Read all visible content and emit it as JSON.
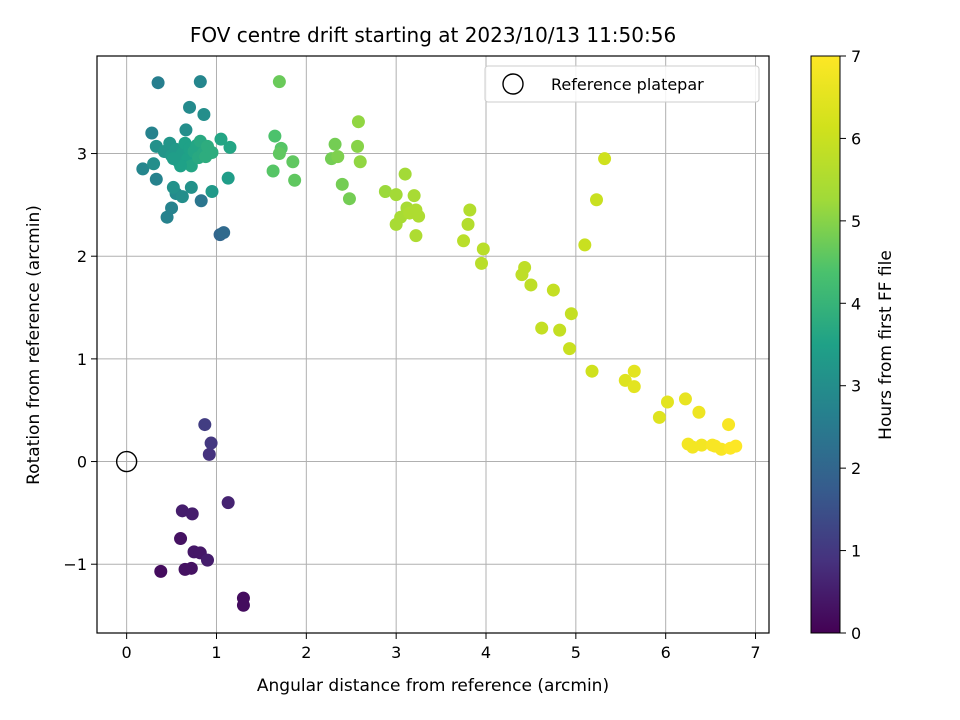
{
  "chart_data": {
    "type": "scatter",
    "title": "FOV centre drift starting at 2023/10/13 11:50:56",
    "xlabel": "Angular distance from reference (arcmin)",
    "ylabel": "Rotation from reference (arcmin)",
    "xlim": [
      -0.33,
      7.15
    ],
    "ylim": [
      -1.67,
      3.95
    ],
    "xticks": [
      0,
      1,
      2,
      3,
      4,
      5,
      6,
      7
    ],
    "yticks": [
      -1,
      0,
      1,
      2,
      3
    ],
    "grid": true,
    "legend": {
      "placement": "top-right",
      "entries": [
        "Reference platepar"
      ]
    },
    "reference_point": {
      "label": "Reference platepar",
      "x": 0,
      "y": 0
    },
    "colorbar": {
      "label": "Hours from first FF file",
      "range": [
        0,
        7
      ],
      "ticks": [
        0,
        1,
        2,
        3,
        4,
        5,
        6,
        7
      ],
      "colormap": "viridis"
    },
    "points": [
      {
        "x": 0.38,
        "y": -1.07,
        "h": 0.2
      },
      {
        "x": 0.65,
        "y": -1.05,
        "h": 0.3
      },
      {
        "x": 0.72,
        "y": -1.04,
        "h": 0.3
      },
      {
        "x": 0.75,
        "y": -0.88,
        "h": 0.4
      },
      {
        "x": 0.82,
        "y": -0.89,
        "h": 0.4
      },
      {
        "x": 0.9,
        "y": -0.96,
        "h": 0.5
      },
      {
        "x": 0.6,
        "y": -0.75,
        "h": 0.3
      },
      {
        "x": 0.62,
        "y": -0.48,
        "h": 0.5
      },
      {
        "x": 0.73,
        "y": -0.51,
        "h": 0.5
      },
      {
        "x": 1.13,
        "y": -0.4,
        "h": 0.6
      },
      {
        "x": 1.3,
        "y": -1.33,
        "h": 0.2
      },
      {
        "x": 1.3,
        "y": -1.4,
        "h": 0.2
      },
      {
        "x": 0.92,
        "y": 0.07,
        "h": 0.9
      },
      {
        "x": 0.94,
        "y": 0.18,
        "h": 1.0
      },
      {
        "x": 0.87,
        "y": 0.36,
        "h": 1.1
      },
      {
        "x": 1.04,
        "y": 2.21,
        "h": 2.0
      },
      {
        "x": 1.08,
        "y": 2.23,
        "h": 2.1
      },
      {
        "x": 0.83,
        "y": 2.54,
        "h": 2.4
      },
      {
        "x": 0.45,
        "y": 2.38,
        "h": 2.7
      },
      {
        "x": 0.5,
        "y": 2.47,
        "h": 2.7
      },
      {
        "x": 0.55,
        "y": 2.61,
        "h": 2.9
      },
      {
        "x": 0.62,
        "y": 2.58,
        "h": 3.0
      },
      {
        "x": 0.52,
        "y": 2.67,
        "h": 3.1
      },
      {
        "x": 0.72,
        "y": 2.67,
        "h": 3.1
      },
      {
        "x": 0.95,
        "y": 2.63,
        "h": 3.3
      },
      {
        "x": 1.13,
        "y": 2.76,
        "h": 3.4
      },
      {
        "x": 0.35,
        "y": 3.69,
        "h": 2.6
      },
      {
        "x": 0.82,
        "y": 3.7,
        "h": 2.8
      },
      {
        "x": 0.7,
        "y": 3.45,
        "h": 2.9
      },
      {
        "x": 0.86,
        "y": 3.38,
        "h": 3.0
      },
      {
        "x": 0.28,
        "y": 3.2,
        "h": 2.7
      },
      {
        "x": 0.66,
        "y": 3.23,
        "h": 3.0
      },
      {
        "x": 0.18,
        "y": 2.85,
        "h": 2.8
      },
      {
        "x": 0.33,
        "y": 2.75,
        "h": 2.7
      },
      {
        "x": 0.3,
        "y": 2.9,
        "h": 3.0
      },
      {
        "x": 0.33,
        "y": 3.07,
        "h": 3.1
      },
      {
        "x": 0.42,
        "y": 3.02,
        "h": 3.2
      },
      {
        "x": 0.48,
        "y": 3.1,
        "h": 3.2
      },
      {
        "x": 0.5,
        "y": 2.98,
        "h": 3.3
      },
      {
        "x": 0.55,
        "y": 3.04,
        "h": 3.3
      },
      {
        "x": 0.58,
        "y": 2.92,
        "h": 3.4
      },
      {
        "x": 0.62,
        "y": 3.0,
        "h": 3.4
      },
      {
        "x": 0.65,
        "y": 3.1,
        "h": 3.5
      },
      {
        "x": 0.68,
        "y": 2.95,
        "h": 3.5
      },
      {
        "x": 0.7,
        "y": 3.05,
        "h": 3.5
      },
      {
        "x": 0.72,
        "y": 2.88,
        "h": 3.6
      },
      {
        "x": 0.75,
        "y": 3.02,
        "h": 3.6
      },
      {
        "x": 0.78,
        "y": 3.08,
        "h": 3.6
      },
      {
        "x": 0.8,
        "y": 2.96,
        "h": 3.7
      },
      {
        "x": 0.82,
        "y": 3.12,
        "h": 3.7
      },
      {
        "x": 0.85,
        "y": 3.0,
        "h": 3.7
      },
      {
        "x": 0.88,
        "y": 2.97,
        "h": 3.8
      },
      {
        "x": 0.9,
        "y": 3.07,
        "h": 3.8
      },
      {
        "x": 0.95,
        "y": 3.01,
        "h": 3.8
      },
      {
        "x": 1.05,
        "y": 3.14,
        "h": 3.6
      },
      {
        "x": 1.15,
        "y": 3.06,
        "h": 3.6
      },
      {
        "x": 0.6,
        "y": 2.88,
        "h": 3.5
      },
      {
        "x": 0.52,
        "y": 2.95,
        "h": 3.4
      },
      {
        "x": 1.65,
        "y": 3.17,
        "h": 4.4
      },
      {
        "x": 1.72,
        "y": 3.05,
        "h": 4.5
      },
      {
        "x": 1.7,
        "y": 3.0,
        "h": 4.6
      },
      {
        "x": 1.85,
        "y": 2.92,
        "h": 4.6
      },
      {
        "x": 1.63,
        "y": 2.83,
        "h": 4.5
      },
      {
        "x": 1.87,
        "y": 2.74,
        "h": 4.6
      },
      {
        "x": 1.7,
        "y": 3.7,
        "h": 4.7
      },
      {
        "x": 2.28,
        "y": 2.95,
        "h": 4.8
      },
      {
        "x": 2.32,
        "y": 3.09,
        "h": 4.8
      },
      {
        "x": 2.35,
        "y": 2.97,
        "h": 4.9
      },
      {
        "x": 2.57,
        "y": 3.07,
        "h": 5.0
      },
      {
        "x": 2.58,
        "y": 3.31,
        "h": 5.1
      },
      {
        "x": 2.6,
        "y": 2.92,
        "h": 5.1
      },
      {
        "x": 2.4,
        "y": 2.7,
        "h": 4.8
      },
      {
        "x": 2.48,
        "y": 2.56,
        "h": 4.8
      },
      {
        "x": 2.88,
        "y": 2.63,
        "h": 5.2
      },
      {
        "x": 3.0,
        "y": 2.6,
        "h": 5.3
      },
      {
        "x": 3.1,
        "y": 2.8,
        "h": 5.3
      },
      {
        "x": 3.12,
        "y": 2.47,
        "h": 5.4
      },
      {
        "x": 3.2,
        "y": 2.59,
        "h": 5.4
      },
      {
        "x": 3.05,
        "y": 2.38,
        "h": 5.4
      },
      {
        "x": 3.0,
        "y": 2.31,
        "h": 5.4
      },
      {
        "x": 3.15,
        "y": 2.42,
        "h": 5.5
      },
      {
        "x": 3.22,
        "y": 2.45,
        "h": 5.5
      },
      {
        "x": 3.25,
        "y": 2.39,
        "h": 5.5
      },
      {
        "x": 3.22,
        "y": 2.2,
        "h": 5.5
      },
      {
        "x": 3.82,
        "y": 2.45,
        "h": 5.6
      },
      {
        "x": 3.8,
        "y": 2.31,
        "h": 5.6
      },
      {
        "x": 3.75,
        "y": 2.15,
        "h": 5.7
      },
      {
        "x": 3.97,
        "y": 2.07,
        "h": 5.7
      },
      {
        "x": 3.95,
        "y": 1.93,
        "h": 5.7
      },
      {
        "x": 4.43,
        "y": 1.89,
        "h": 5.8
      },
      {
        "x": 4.4,
        "y": 1.82,
        "h": 5.8
      },
      {
        "x": 4.5,
        "y": 1.72,
        "h": 5.8
      },
      {
        "x": 4.75,
        "y": 1.67,
        "h": 5.9
      },
      {
        "x": 4.95,
        "y": 1.44,
        "h": 5.9
      },
      {
        "x": 4.62,
        "y": 1.3,
        "h": 5.9
      },
      {
        "x": 4.82,
        "y": 1.28,
        "h": 5.9
      },
      {
        "x": 4.93,
        "y": 1.1,
        "h": 6.0
      },
      {
        "x": 5.1,
        "y": 2.11,
        "h": 6.0
      },
      {
        "x": 5.23,
        "y": 2.55,
        "h": 6.0
      },
      {
        "x": 5.32,
        "y": 2.95,
        "h": 6.1
      },
      {
        "x": 5.18,
        "y": 0.88,
        "h": 6.1
      },
      {
        "x": 5.55,
        "y": 0.79,
        "h": 6.4
      },
      {
        "x": 5.65,
        "y": 0.88,
        "h": 6.5
      },
      {
        "x": 5.65,
        "y": 0.73,
        "h": 6.5
      },
      {
        "x": 6.02,
        "y": 0.58,
        "h": 6.5
      },
      {
        "x": 5.93,
        "y": 0.43,
        "h": 6.4
      },
      {
        "x": 6.22,
        "y": 0.61,
        "h": 6.6
      },
      {
        "x": 6.37,
        "y": 0.48,
        "h": 6.7
      },
      {
        "x": 6.25,
        "y": 0.17,
        "h": 6.8
      },
      {
        "x": 6.3,
        "y": 0.14,
        "h": 6.8
      },
      {
        "x": 6.4,
        "y": 0.16,
        "h": 6.8
      },
      {
        "x": 6.52,
        "y": 0.16,
        "h": 6.9
      },
      {
        "x": 6.55,
        "y": 0.15,
        "h": 6.9
      },
      {
        "x": 6.62,
        "y": 0.12,
        "h": 6.9
      },
      {
        "x": 6.7,
        "y": 0.36,
        "h": 6.9
      },
      {
        "x": 6.72,
        "y": 0.13,
        "h": 7.0
      },
      {
        "x": 6.78,
        "y": 0.15,
        "h": 7.0
      }
    ]
  }
}
